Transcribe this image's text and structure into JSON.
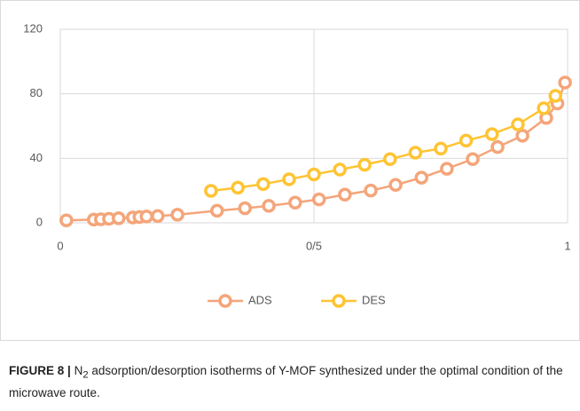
{
  "chart_data": {
    "type": "line",
    "x": [
      0.012,
      0.066,
      0.08,
      0.096,
      0.115,
      0.143,
      0.156,
      0.17,
      0.192,
      0.231,
      0.297,
      0.309,
      0.35,
      0.364,
      0.4,
      0.411,
      0.451,
      0.463,
      0.5,
      0.51,
      0.551,
      0.561,
      0.6,
      0.612,
      0.65,
      0.661,
      0.7,
      0.712,
      0.75,
      0.762,
      0.8,
      0.813,
      0.851,
      0.862,
      0.902,
      0.911,
      0.953,
      0.958,
      0.976,
      0.98,
      0.995
    ],
    "series": [
      {
        "name": "ADS",
        "color": "#f4a57a",
        "values": [
          1.5,
          2,
          2.2,
          2.5,
          2.8,
          3.3,
          3.6,
          3.9,
          4.2,
          5,
          null,
          7.5,
          null,
          9,
          null,
          10.5,
          null,
          12.5,
          null,
          14.5,
          null,
          17.5,
          null,
          20,
          null,
          23.5,
          null,
          28,
          null,
          33.5,
          null,
          39.5,
          null,
          47,
          null,
          54,
          null,
          65,
          null,
          74,
          87
        ]
      },
      {
        "name": "DES",
        "color": "#ffc433",
        "values": [
          null,
          null,
          null,
          null,
          null,
          null,
          null,
          null,
          null,
          null,
          19.8,
          null,
          21.8,
          null,
          24,
          null,
          27,
          null,
          30,
          null,
          33,
          null,
          36,
          null,
          39.5,
          null,
          43.5,
          null,
          46,
          null,
          51,
          null,
          55,
          null,
          61,
          null,
          71,
          null,
          78.7,
          null,
          null
        ]
      }
    ],
    "xlim": [
      0,
      1
    ],
    "xticks": [
      0,
      {
        "value": 0.5,
        "label": "0/5"
      },
      1
    ],
    "ylim": [
      0,
      120
    ],
    "yticks": [
      0,
      40,
      80,
      120
    ],
    "grid": true,
    "legend": "bottom"
  },
  "caption": {
    "label": "FIGURE 8 |",
    "text": [
      "N",
      "2",
      " adsorption/desorption isotherms of Y-MOF synthesized under the optimal condition of the microwave route."
    ]
  }
}
